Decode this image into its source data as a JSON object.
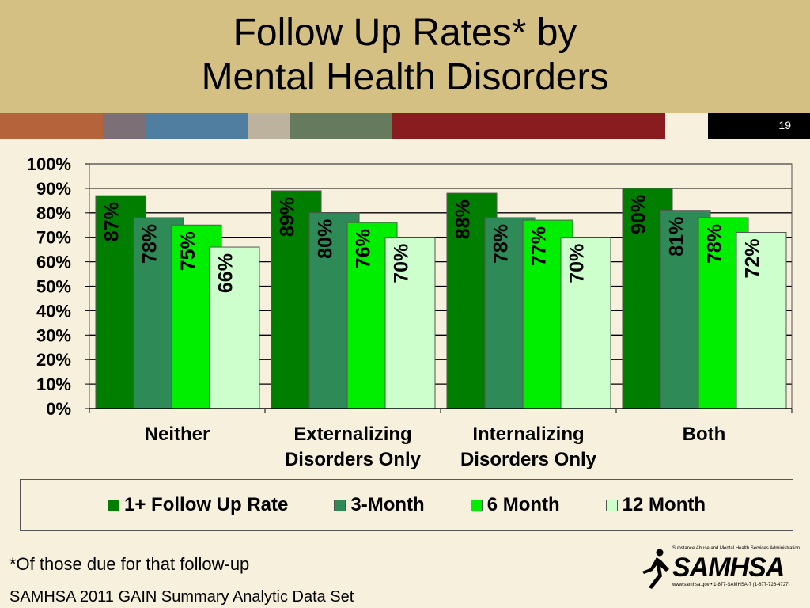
{
  "header": {
    "title_line1": "Follow Up Rates* by",
    "title_line2": "Mental Health Disorders",
    "slide_number": "19"
  },
  "colors": {
    "header_bg": "#d5c083",
    "page_bg": "#f6f0dc",
    "stripe": [
      "#b4633a",
      "#7c6f76",
      "#4f7ea0",
      "#bdb29e",
      "#667a5e",
      "#881c1f"
    ],
    "series": [
      "#007e00",
      "#2e8b57",
      "#00ee00",
      "#ccffcc"
    ]
  },
  "chart_data": {
    "type": "bar",
    "title": "Follow Up Rates* by Mental Health Disorders",
    "categories": [
      [
        "Neither"
      ],
      [
        "Externalizing",
        "Disorders Only"
      ],
      [
        "Internalizing",
        "Disorders Only"
      ],
      [
        "Both"
      ]
    ],
    "series": [
      {
        "name": "1+ Follow Up Rate",
        "values": [
          87,
          89,
          88,
          90
        ],
        "labels": [
          "87%",
          "89%",
          "88%",
          "90%"
        ]
      },
      {
        "name": "3-Month",
        "values": [
          78,
          80,
          78,
          81
        ],
        "labels": [
          "78%",
          "80%",
          "78%",
          "81%"
        ]
      },
      {
        "name": "6 Month",
        "values": [
          75,
          76,
          77,
          78
        ],
        "labels": [
          "75%",
          "76%",
          "77%",
          "78%"
        ]
      },
      {
        "name": "12 Month",
        "values": [
          66,
          70,
          70,
          72
        ],
        "labels": [
          "66%",
          "70%",
          "70%",
          "72%"
        ]
      }
    ],
    "y_ticks": [
      "0%",
      "10%",
      "20%",
      "30%",
      "40%",
      "50%",
      "60%",
      "70%",
      "80%",
      "90%",
      "100%"
    ],
    "ylim": [
      0,
      100
    ],
    "grid": true,
    "legend_position": "bottom"
  },
  "footnote": "*Of those due for that follow-up",
  "source": "SAMHSA 2011 GAIN Summary Analytic Data Set",
  "logo": {
    "wordmark": "SAMHSA",
    "tagline": "Substance Abuse and Mental Health Services Administration",
    "contact": "www.samhsa.gov • 1-877-SAMHSA-7 (1-877-726-4727)"
  }
}
